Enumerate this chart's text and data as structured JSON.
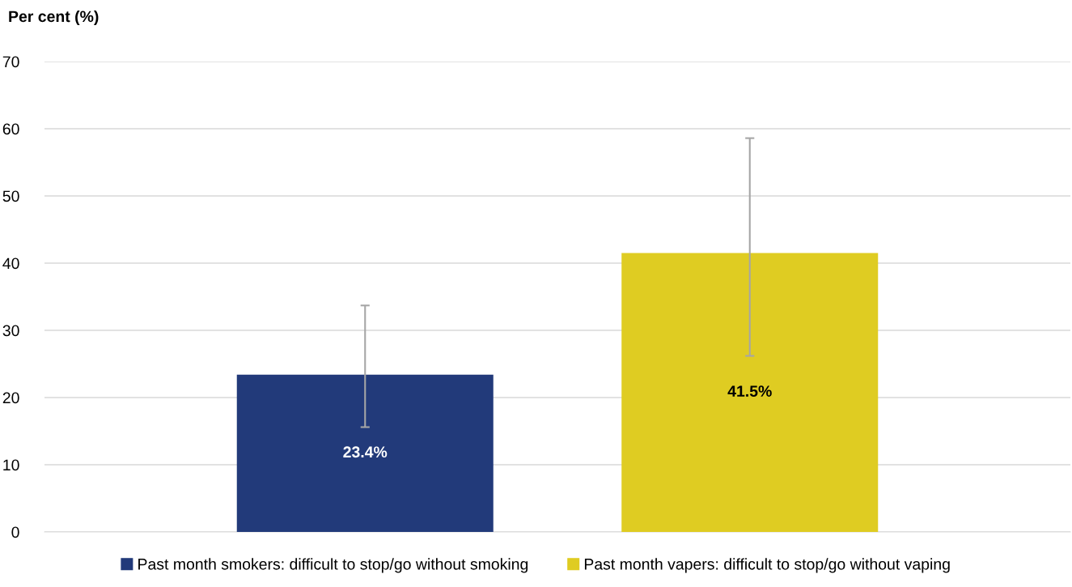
{
  "chart_data": {
    "type": "bar",
    "ylabel": "Per cent (%)",
    "categories": [
      null
    ],
    "series": [
      {
        "name": "Past month smokers: difficult to stop/go without smoking",
        "color": "#223a7a",
        "values": [
          23.4
        ],
        "errors": [
          [
            15.6,
            33.7
          ]
        ],
        "value_labels": [
          "23.4%"
        ]
      },
      {
        "name": "Past month vapers: difficult to stop/go without vaping",
        "color": "#dfcc22",
        "values": [
          41.5
        ],
        "errors": [
          [
            26.2,
            58.6
          ]
        ],
        "value_labels": [
          "41.5%"
        ]
      }
    ],
    "ylim": [
      0,
      70
    ],
    "yticks": [
      0,
      10,
      20,
      30,
      40,
      50,
      60,
      70
    ],
    "grid": "y",
    "legend": "bottom"
  }
}
